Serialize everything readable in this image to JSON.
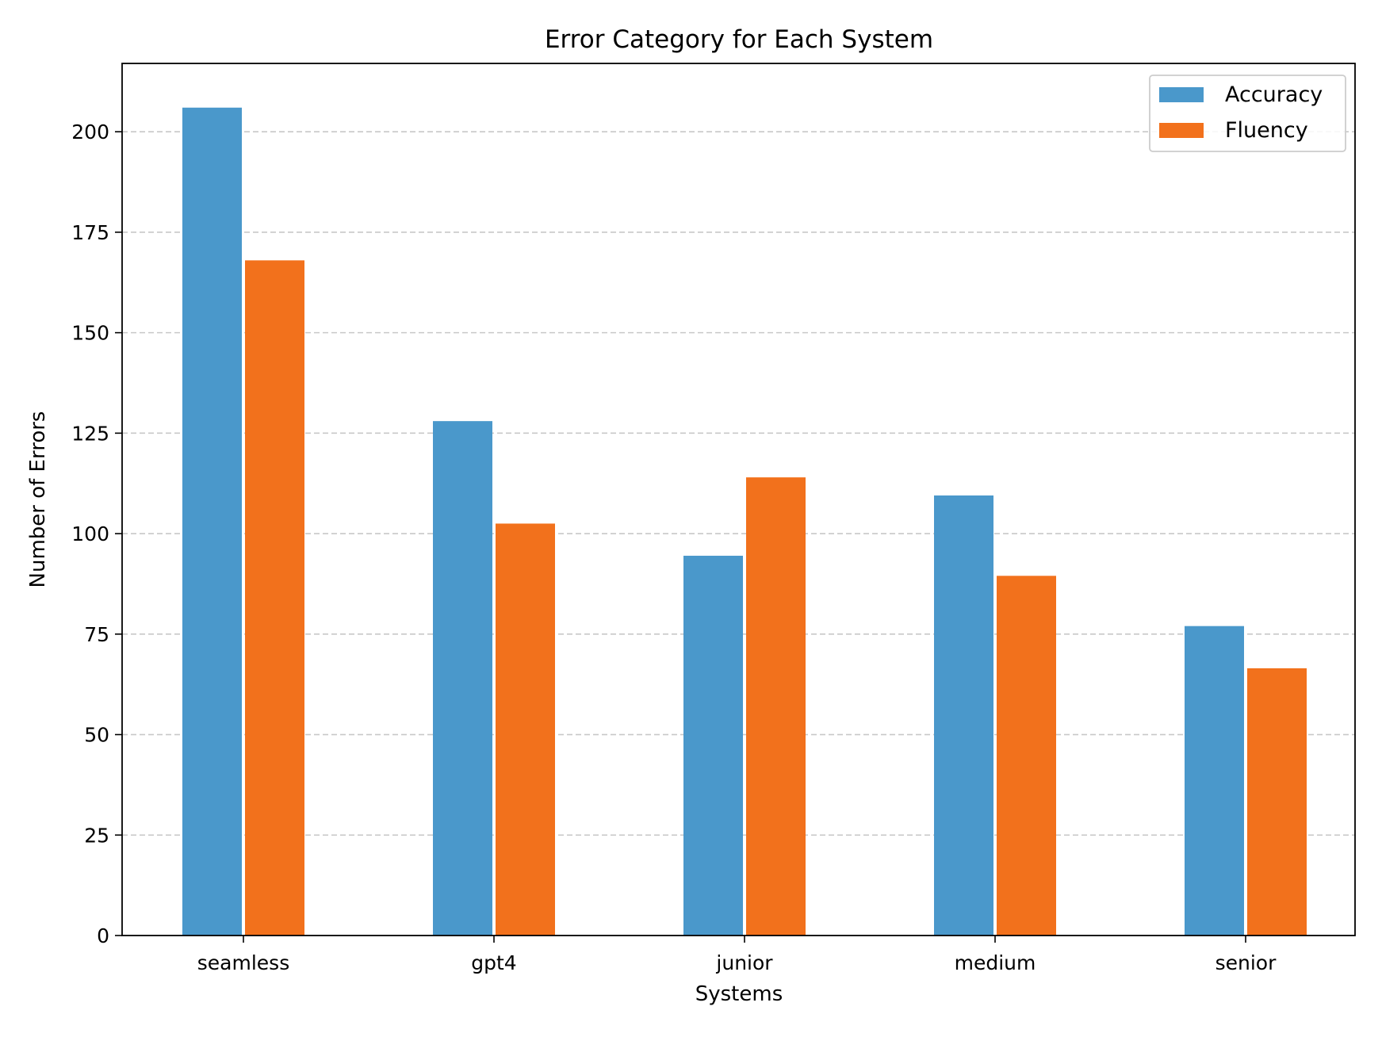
{
  "chart_data": {
    "type": "bar",
    "title": "Error Category for Each System",
    "xlabel": "Systems",
    "ylabel": "Number of Errors",
    "categories": [
      "seamless",
      "gpt4",
      "junior",
      "medium",
      "senior"
    ],
    "series": [
      {
        "name": "Accuracy",
        "color": "#4a98cb",
        "values": [
          206,
          128,
          94.5,
          109.5,
          77
        ]
      },
      {
        "name": "Fluency",
        "color": "#f2711c",
        "values": [
          168,
          102.5,
          114,
          89.5,
          66.5
        ]
      }
    ],
    "ylim": [
      0,
      217
    ],
    "yticks": [
      0,
      25,
      50,
      75,
      100,
      125,
      150,
      175,
      200
    ],
    "grid": "y-dashed",
    "legend": "top-right"
  }
}
